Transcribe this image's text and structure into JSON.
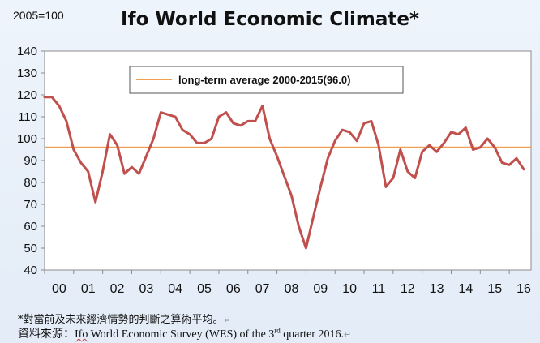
{
  "header": {
    "scale_note": "2005=100",
    "title": "Ifo World Economic Climate*"
  },
  "footer": {
    "note": "*對當前及未來經濟情勢的判斷之算術平均。",
    "source_prefix": "資料來源：",
    "source_ifo": "Ifo",
    "source_mid": " World Economic Survey (WES) of the 3",
    "source_sup": "rd",
    "source_suffix": " quarter 2016.",
    "return_mark": "↵"
  },
  "chart_data": {
    "type": "line",
    "title": "Ifo World Economic Climate*",
    "xlabel": "",
    "ylabel": "",
    "ylim": [
      40,
      140
    ],
    "yticks": [
      40,
      50,
      60,
      70,
      80,
      90,
      100,
      110,
      120,
      130,
      140
    ],
    "xlim": [
      2000,
      2016.75
    ],
    "xtick_labels": [
      "00",
      "01",
      "02",
      "03",
      "04",
      "05",
      "06",
      "07",
      "08",
      "09",
      "10",
      "11",
      "12",
      "13",
      "14",
      "15",
      "16"
    ],
    "grid": false,
    "legend": {
      "position": "top-left",
      "entries": [
        "long-term average 2000-2015(96.0)"
      ]
    },
    "reference_line": {
      "name": "long-term average 2000-2015(96.0)",
      "value": 96.0,
      "color": "#f0a050"
    },
    "series": [
      {
        "color": "#c0504d",
        "x": [
          2000.0,
          2000.25,
          2000.5,
          2000.75,
          2001.0,
          2001.25,
          2001.5,
          2001.75,
          2002.0,
          2002.25,
          2002.5,
          2002.75,
          2003.0,
          2003.25,
          2003.5,
          2003.75,
          2004.0,
          2004.25,
          2004.5,
          2004.75,
          2005.0,
          2005.25,
          2005.5,
          2005.75,
          2006.0,
          2006.25,
          2006.5,
          2006.75,
          2007.0,
          2007.25,
          2007.5,
          2007.75,
          2008.0,
          2008.25,
          2008.5,
          2008.75,
          2009.0,
          2009.25,
          2009.5,
          2009.75,
          2010.0,
          2010.25,
          2010.5,
          2010.75,
          2011.0,
          2011.25,
          2011.5,
          2011.75,
          2012.0,
          2012.25,
          2012.5,
          2012.75,
          2013.0,
          2013.25,
          2013.5,
          2013.75,
          2014.0,
          2014.25,
          2014.5,
          2014.75,
          2015.0,
          2015.25,
          2015.5,
          2015.75,
          2016.0,
          2016.25,
          2016.5
        ],
        "values": [
          119,
          119,
          115,
          108,
          95,
          89,
          85,
          71,
          85,
          102,
          97,
          84,
          87,
          84,
          92,
          100,
          112,
          111,
          110,
          104,
          102,
          98,
          98,
          100,
          110,
          112,
          107,
          106,
          108,
          108,
          115,
          100,
          92,
          83,
          74,
          60,
          50,
          64,
          78,
          91,
          99,
          104,
          103,
          99,
          107,
          108,
          97,
          78,
          82,
          95,
          85,
          82,
          94,
          97,
          94,
          98,
          103,
          102,
          105,
          95,
          96,
          100,
          96,
          89,
          88,
          91,
          86
        ]
      }
    ]
  }
}
